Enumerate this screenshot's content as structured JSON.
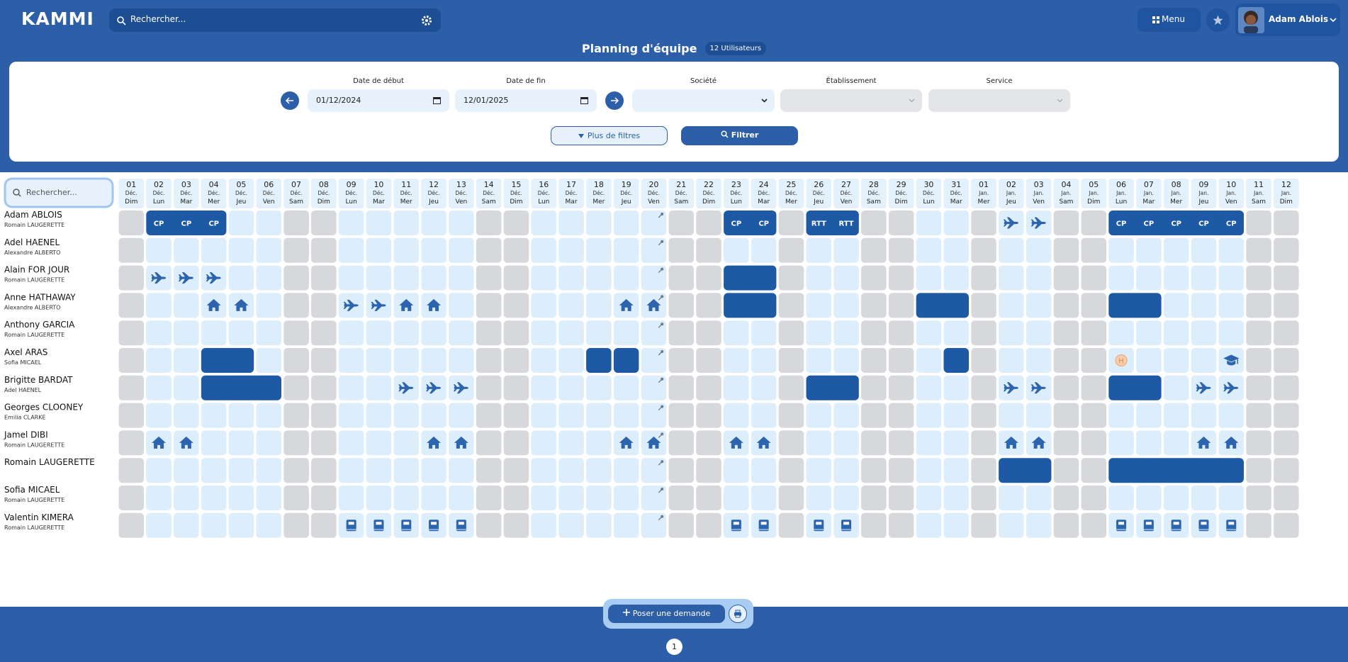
{
  "header": {
    "logo": "KAMMI",
    "search_placeholder": "Rechercher...",
    "menu": "Menu",
    "user": "Adam Ablois"
  },
  "page": {
    "title": "Planning d'équipe",
    "badge": "12 Utilisateurs"
  },
  "filters": {
    "start_label": "Date de début",
    "start_value": "01/12/2024",
    "end_label": "Date de fin",
    "end_value": "12/01/2025",
    "company_label": "Société",
    "site_label": "Établissement",
    "service_label": "Service",
    "more_filters": "Plus de filtres",
    "submit": "Filtrer"
  },
  "planning": {
    "search_placeholder": "Rechercher...",
    "days": [
      "01",
      "02",
      "03",
      "04",
      "05",
      "06",
      "07",
      "08",
      "09",
      "10",
      "11",
      "12",
      "13",
      "14",
      "15",
      "16",
      "17",
      "18",
      "19",
      "20",
      "21",
      "22",
      "23",
      "24",
      "25",
      "26",
      "27",
      "28",
      "29",
      "30",
      "31",
      "01",
      "02",
      "03",
      "04",
      "05",
      "06",
      "07",
      "08",
      "09",
      "10",
      "11",
      "12"
    ],
    "months": [
      "Déc.",
      "Déc.",
      "Déc.",
      "Déc.",
      "Déc.",
      "Déc.",
      "Déc.",
      "Déc.",
      "Déc.",
      "Déc.",
      "Déc.",
      "Déc.",
      "Déc.",
      "Déc.",
      "Déc.",
      "Déc.",
      "Déc.",
      "Déc.",
      "Déc.",
      "Déc.",
      "Déc.",
      "Déc.",
      "Déc.",
      "Déc.",
      "Déc.",
      "Déc.",
      "Déc.",
      "Déc.",
      "Déc.",
      "Déc.",
      "Déc.",
      "Jan.",
      "Jan.",
      "Jan.",
      "Jan.",
      "Jan.",
      "Jan.",
      "Jan.",
      "Jan.",
      "Jan.",
      "Jan.",
      "Jan.",
      "Jan."
    ],
    "weekdays": [
      "Dim",
      "Lun",
      "Mar",
      "Mer",
      "Jeu",
      "Ven",
      "Sam",
      "Dim",
      "Lun",
      "Mar",
      "Mer",
      "Jeu",
      "Ven",
      "Sam",
      "Dim",
      "Lun",
      "Mar",
      "Mer",
      "Jeu",
      "Ven",
      "Sam",
      "Dim",
      "Lun",
      "Mar",
      "Mer",
      "Jeu",
      "Ven",
      "Sam",
      "Dim",
      "Lun",
      "Mar",
      "Mer",
      "Jeu",
      "Ven",
      "Sam",
      "Dim",
      "Lun",
      "Mar",
      "Mer",
      "Jeu",
      "Ven",
      "Sam",
      "Dim"
    ],
    "off_days": [
      0,
      6,
      7,
      13,
      14,
      20,
      21,
      24,
      27,
      28,
      31,
      34,
      35,
      41,
      42
    ],
    "users": [
      {
        "name": "Adam ABLOIS",
        "manager": "Romain LAUGERETTE",
        "blocks": [
          {
            "from": 1,
            "to": 3,
            "label": "CP"
          },
          {
            "from": 22,
            "to": 23,
            "label": "CP"
          },
          {
            "from": 25,
            "to": 26,
            "label": "RTT"
          },
          {
            "from": 36,
            "to": 40,
            "label": "CP"
          }
        ],
        "icons": [
          {
            "at": 32,
            "icon": "plane"
          },
          {
            "at": 33,
            "icon": "plane"
          }
        ]
      },
      {
        "name": "Adel HAENEL",
        "manager": "Alexandre ALBERTO",
        "blocks": [],
        "icons": []
      },
      {
        "name": "Alain FOR JOUR",
        "manager": "Romain LAUGERETTE",
        "blocks": [
          {
            "from": 22,
            "to": 23
          }
        ],
        "icons": [
          {
            "at": 1,
            "icon": "plane"
          },
          {
            "at": 2,
            "icon": "plane"
          },
          {
            "at": 3,
            "icon": "plane"
          }
        ]
      },
      {
        "name": "Anne HATHAWAY",
        "manager": "Alexandre ALBERTO",
        "blocks": [
          {
            "from": 22,
            "to": 23
          },
          {
            "from": 29,
            "to": 30
          },
          {
            "from": 36,
            "to": 37
          }
        ],
        "icons": [
          {
            "at": 3,
            "icon": "home"
          },
          {
            "at": 4,
            "icon": "home"
          },
          {
            "at": 8,
            "icon": "plane"
          },
          {
            "at": 9,
            "icon": "plane"
          },
          {
            "at": 10,
            "icon": "home"
          },
          {
            "at": 11,
            "icon": "home"
          },
          {
            "at": 18,
            "icon": "home"
          },
          {
            "at": 19,
            "icon": "home"
          }
        ]
      },
      {
        "name": "Anthony GARCIA",
        "manager": "Romain LAUGERETTE",
        "blocks": [],
        "icons": []
      },
      {
        "name": "Axel ARAS",
        "manager": "Sofia MICAEL",
        "blocks": [
          {
            "from": 3,
            "to": 4
          },
          {
            "from": 17,
            "to": 17
          },
          {
            "from": 18,
            "to": 18
          },
          {
            "from": 30,
            "to": 30
          }
        ],
        "icons": [
          {
            "at": 36,
            "icon": "badge",
            "label": "H"
          },
          {
            "at": 40,
            "icon": "hat"
          }
        ]
      },
      {
        "name": "Brigitte BARDAT",
        "manager": "Adel HAENEL",
        "blocks": [
          {
            "from": 3,
            "to": 5
          },
          {
            "from": 25,
            "to": 26
          },
          {
            "from": 36,
            "to": 37
          }
        ],
        "icons": [
          {
            "at": 10,
            "icon": "plane"
          },
          {
            "at": 11,
            "icon": "plane"
          },
          {
            "at": 12,
            "icon": "plane"
          },
          {
            "at": 32,
            "icon": "plane"
          },
          {
            "at": 33,
            "icon": "plane"
          },
          {
            "at": 39,
            "icon": "plane"
          },
          {
            "at": 40,
            "icon": "plane"
          }
        ]
      },
      {
        "name": "Georges CLOONEY",
        "manager": "Emilia CLARKE",
        "blocks": [],
        "icons": []
      },
      {
        "name": "Jamel DIBI",
        "manager": "Romain LAUGERETTE",
        "blocks": [],
        "icons": [
          {
            "at": 1,
            "icon": "home"
          },
          {
            "at": 2,
            "icon": "home"
          },
          {
            "at": 11,
            "icon": "home"
          },
          {
            "at": 12,
            "icon": "home"
          },
          {
            "at": 18,
            "icon": "home"
          },
          {
            "at": 19,
            "icon": "home"
          },
          {
            "at": 22,
            "icon": "home"
          },
          {
            "at": 23,
            "icon": "home"
          },
          {
            "at": 32,
            "icon": "home"
          },
          {
            "at": 33,
            "icon": "home"
          },
          {
            "at": 39,
            "icon": "home"
          },
          {
            "at": 40,
            "icon": "home"
          }
        ]
      },
      {
        "name": "Romain LAUGERETTE",
        "blocks": [
          {
            "from": 32,
            "to": 33
          },
          {
            "from": 36,
            "to": 40
          }
        ],
        "icons": []
      },
      {
        "name": "Sofia MICAEL",
        "manager": "Romain LAUGERETTE",
        "blocks": [],
        "icons": []
      },
      {
        "name": "Valentin KIMERA",
        "manager": "Romain LAUGERETTE",
        "blocks": [],
        "icons": [
          {
            "at": 8,
            "icon": "book"
          },
          {
            "at": 9,
            "icon": "book"
          },
          {
            "at": 10,
            "icon": "book"
          },
          {
            "at": 11,
            "icon": "book"
          },
          {
            "at": 12,
            "icon": "book"
          },
          {
            "at": 22,
            "icon": "book"
          },
          {
            "at": 23,
            "icon": "book"
          },
          {
            "at": 25,
            "icon": "book"
          },
          {
            "at": 26,
            "icon": "book"
          },
          {
            "at": 36,
            "icon": "book"
          },
          {
            "at": 37,
            "icon": "book"
          },
          {
            "at": 38,
            "icon": "book"
          },
          {
            "at": 39,
            "icon": "book"
          },
          {
            "at": 40,
            "icon": "book"
          }
        ]
      }
    ]
  },
  "footer": {
    "request": "Poser une demande",
    "page": "1"
  }
}
